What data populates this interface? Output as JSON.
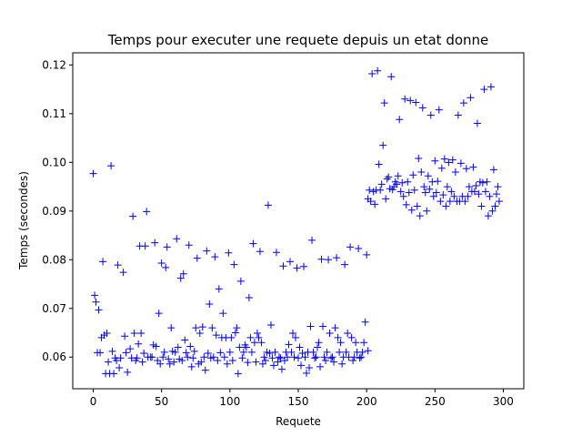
{
  "chart_data": {
    "type": "scatter",
    "title": "Temps pour executer une requete depuis un etat donne",
    "xlabel": "Requete",
    "ylabel": "Temps (secondes)",
    "xlim": [
      -15,
      315
    ],
    "ylim": [
      0.0535,
      0.1225
    ],
    "xticks": [
      0,
      50,
      100,
      150,
      200,
      250,
      300
    ],
    "xtick_labels": [
      "0",
      "50",
      "100",
      "150",
      "200",
      "250",
      "300"
    ],
    "yticks": [
      0.06,
      0.07,
      0.08,
      0.09,
      0.1,
      0.11,
      0.12
    ],
    "ytick_labels": [
      "0.06",
      "0.07",
      "0.08",
      "0.09",
      "0.10",
      "0.11",
      "0.12"
    ],
    "marker": "+",
    "color": "#0000ff",
    "grid": false,
    "series": [
      {
        "points": [
          [
            0,
            0.0977
          ],
          [
            1,
            0.0727
          ],
          [
            2,
            0.0713
          ],
          [
            4,
            0.0697
          ],
          [
            3,
            0.0609
          ],
          [
            6,
            0.064
          ],
          [
            7,
            0.0796
          ],
          [
            8,
            0.0645
          ],
          [
            5,
            0.0609
          ],
          [
            9,
            0.0566
          ],
          [
            10,
            0.0649
          ],
          [
            11,
            0.059
          ],
          [
            12,
            0.0566
          ],
          [
            13,
            0.0993
          ],
          [
            14,
            0.0612
          ],
          [
            15,
            0.0566
          ],
          [
            16,
            0.0598
          ],
          [
            17,
            0.0593
          ],
          [
            18,
            0.0789
          ],
          [
            19,
            0.0578
          ],
          [
            20,
            0.0598
          ],
          [
            22,
            0.0774
          ],
          [
            23,
            0.0643
          ],
          [
            24,
            0.0609
          ],
          [
            25,
            0.0569
          ],
          [
            27,
            0.0617
          ],
          [
            28,
            0.0598
          ],
          [
            29,
            0.0889
          ],
          [
            30,
            0.0649
          ],
          [
            31,
            0.0593
          ],
          [
            32,
            0.0598
          ],
          [
            33,
            0.0627
          ],
          [
            34,
            0.0828
          ],
          [
            35,
            0.0649
          ],
          [
            36,
            0.059
          ],
          [
            37,
            0.0608
          ],
          [
            38,
            0.0828
          ],
          [
            39,
            0.0899
          ],
          [
            40,
            0.06
          ],
          [
            42,
            0.06
          ],
          [
            43,
            0.06
          ],
          [
            44,
            0.0625
          ],
          [
            45,
            0.0835
          ],
          [
            46,
            0.0622
          ],
          [
            47,
            0.0593
          ],
          [
            48,
            0.069
          ],
          [
            49,
            0.0586
          ],
          [
            50,
            0.0793
          ],
          [
            51,
            0.06
          ],
          [
            52,
            0.061
          ],
          [
            53,
            0.0784
          ],
          [
            54,
            0.0826
          ],
          [
            55,
            0.0596
          ],
          [
            56,
            0.0586
          ],
          [
            57,
            0.066
          ],
          [
            58,
            0.0612
          ],
          [
            59,
            0.059
          ],
          [
            60,
            0.061
          ],
          [
            61,
            0.0843
          ],
          [
            62,
            0.062
          ],
          [
            63,
            0.0596
          ],
          [
            64,
            0.0762
          ],
          [
            65,
            0.0593
          ],
          [
            66,
            0.0771
          ],
          [
            67,
            0.0635
          ],
          [
            68,
            0.0609
          ],
          [
            69,
            0.06
          ],
          [
            70,
            0.083
          ],
          [
            71,
            0.0622
          ],
          [
            72,
            0.058
          ],
          [
            73,
            0.0598
          ],
          [
            74,
            0.0612
          ],
          [
            75,
            0.066
          ],
          [
            76,
            0.0803
          ],
          [
            77,
            0.0586
          ],
          [
            78,
            0.0649
          ],
          [
            79,
            0.059
          ],
          [
            80,
            0.0662
          ],
          [
            81,
            0.06
          ],
          [
            82,
            0.0573
          ],
          [
            83,
            0.0818
          ],
          [
            84,
            0.0608
          ],
          [
            85,
            0.0709
          ],
          [
            86,
            0.0598
          ],
          [
            87,
            0.066
          ],
          [
            88,
            0.06
          ],
          [
            89,
            0.0806
          ],
          [
            90,
            0.0645
          ],
          [
            91,
            0.0593
          ],
          [
            92,
            0.074
          ],
          [
            93,
            0.0609
          ],
          [
            94,
            0.064
          ],
          [
            95,
            0.069
          ],
          [
            96,
            0.06
          ],
          [
            97,
            0.064
          ],
          [
            98,
            0.0586
          ],
          [
            99,
            0.0814
          ],
          [
            100,
            0.061
          ],
          [
            101,
            0.064
          ],
          [
            102,
            0.0593
          ],
          [
            103,
            0.079
          ],
          [
            104,
            0.065
          ],
          [
            105,
            0.066
          ],
          [
            106,
            0.0566
          ],
          [
            107,
            0.062
          ],
          [
            108,
            0.0756
          ],
          [
            109,
            0.0598
          ],
          [
            110,
            0.061
          ],
          [
            111,
            0.0625
          ],
          [
            112,
            0.062
          ],
          [
            113,
            0.0589
          ],
          [
            114,
            0.0722
          ],
          [
            115,
            0.064
          ],
          [
            116,
            0.061
          ],
          [
            117,
            0.0833
          ],
          [
            118,
            0.063
          ],
          [
            119,
            0.059
          ],
          [
            120,
            0.0649
          ],
          [
            121,
            0.064
          ],
          [
            122,
            0.0817
          ],
          [
            123,
            0.063
          ],
          [
            124,
            0.0586
          ],
          [
            125,
            0.06
          ],
          [
            126,
            0.0593
          ],
          [
            127,
            0.061
          ],
          [
            128,
            0.0912
          ],
          [
            129,
            0.0608
          ],
          [
            130,
            0.0666
          ],
          [
            131,
            0.0598
          ],
          [
            132,
            0.0583
          ],
          [
            133,
            0.061
          ],
          [
            134,
            0.0815
          ],
          [
            135,
            0.059
          ],
          [
            136,
            0.06
          ],
          [
            137,
            0.0598
          ],
          [
            138,
            0.0575
          ],
          [
            139,
            0.0787
          ],
          [
            140,
            0.0593
          ],
          [
            141,
            0.061
          ],
          [
            142,
            0.06
          ],
          [
            143,
            0.0626
          ],
          [
            144,
            0.0796
          ],
          [
            145,
            0.061
          ],
          [
            146,
            0.0649
          ],
          [
            147,
            0.06
          ],
          [
            148,
            0.064
          ],
          [
            149,
            0.0783
          ],
          [
            150,
            0.0598
          ],
          [
            151,
            0.062
          ],
          [
            152,
            0.0583
          ],
          [
            153,
            0.0608
          ],
          [
            154,
            0.0786
          ],
          [
            155,
            0.06
          ],
          [
            156,
            0.0567
          ],
          [
            157,
            0.061
          ],
          [
            158,
            0.0578
          ],
          [
            159,
            0.0663
          ],
          [
            160,
            0.084
          ],
          [
            161,
            0.061
          ],
          [
            162,
            0.0598
          ],
          [
            163,
            0.06
          ],
          [
            164,
            0.062
          ],
          [
            165,
            0.063
          ],
          [
            166,
            0.058
          ],
          [
            167,
            0.0801
          ],
          [
            168,
            0.0663
          ],
          [
            169,
            0.06
          ],
          [
            170,
            0.0593
          ],
          [
            171,
            0.061
          ],
          [
            172,
            0.08
          ],
          [
            173,
            0.0649
          ],
          [
            174,
            0.0598
          ],
          [
            175,
            0.06
          ],
          [
            176,
            0.059
          ],
          [
            177,
            0.066
          ],
          [
            178,
            0.0804
          ],
          [
            179,
            0.064
          ],
          [
            180,
            0.061
          ],
          [
            181,
            0.063
          ],
          [
            182,
            0.0586
          ],
          [
            183,
            0.06
          ],
          [
            184,
            0.079
          ],
          [
            185,
            0.061
          ],
          [
            186,
            0.0649
          ],
          [
            187,
            0.06
          ],
          [
            188,
            0.0826
          ],
          [
            189,
            0.064
          ],
          [
            190,
            0.0593
          ],
          [
            191,
            0.06
          ],
          [
            192,
            0.063
          ],
          [
            193,
            0.061
          ],
          [
            194,
            0.0823
          ],
          [
            195,
            0.0598
          ],
          [
            196,
            0.06
          ],
          [
            197,
            0.061
          ],
          [
            198,
            0.063
          ],
          [
            199,
            0.0672
          ],
          [
            200,
            0.081
          ],
          [
            201,
            0.0613
          ],
          [
            201,
            0.0925
          ],
          [
            202,
            0.0943
          ],
          [
            203,
            0.092
          ],
          [
            204,
            0.1182
          ],
          [
            205,
            0.094
          ],
          [
            206,
            0.0914
          ],
          [
            207,
            0.0943
          ],
          [
            208,
            0.1188
          ],
          [
            209,
            0.0996
          ],
          [
            210,
            0.0943
          ],
          [
            211,
            0.0955
          ],
          [
            212,
            0.1035
          ],
          [
            213,
            0.1122
          ],
          [
            214,
            0.0925
          ],
          [
            215,
            0.0966
          ],
          [
            216,
            0.097
          ],
          [
            217,
            0.0946
          ],
          [
            218,
            0.1176
          ],
          [
            219,
            0.0944
          ],
          [
            220,
            0.095
          ],
          [
            221,
            0.096
          ],
          [
            222,
            0.0955
          ],
          [
            223,
            0.0972
          ],
          [
            224,
            0.1088
          ],
          [
            225,
            0.094
          ],
          [
            226,
            0.0958
          ],
          [
            227,
            0.093
          ],
          [
            228,
            0.113
          ],
          [
            229,
            0.0913
          ],
          [
            230,
            0.096
          ],
          [
            231,
            0.0938
          ],
          [
            232,
            0.1127
          ],
          [
            233,
            0.0902
          ],
          [
            234,
            0.0974
          ],
          [
            235,
            0.0943
          ],
          [
            236,
            0.1123
          ],
          [
            237,
            0.091
          ],
          [
            238,
            0.1008
          ],
          [
            239,
            0.089
          ],
          [
            240,
            0.098
          ],
          [
            241,
            0.1112
          ],
          [
            242,
            0.095
          ],
          [
            243,
            0.0938
          ],
          [
            244,
            0.09
          ],
          [
            245,
            0.0972
          ],
          [
            246,
            0.0945
          ],
          [
            247,
            0.1097
          ],
          [
            248,
            0.096
          ],
          [
            249,
            0.093
          ],
          [
            250,
            0.1003
          ],
          [
            251,
            0.0938
          ],
          [
            252,
            0.0961
          ],
          [
            253,
            0.1108
          ],
          [
            254,
            0.092
          ],
          [
            255,
            0.0988
          ],
          [
            256,
            0.0933
          ],
          [
            257,
            0.1007
          ],
          [
            258,
            0.091
          ],
          [
            259,
            0.095
          ],
          [
            260,
            0.1
          ],
          [
            261,
            0.092
          ],
          [
            262,
            0.094
          ],
          [
            263,
            0.1005
          ],
          [
            264,
            0.093
          ],
          [
            265,
            0.098
          ],
          [
            266,
            0.092
          ],
          [
            267,
            0.1097
          ],
          [
            268,
            0.092
          ],
          [
            269,
            0.0998
          ],
          [
            270,
            0.093
          ],
          [
            271,
            0.1122
          ],
          [
            272,
            0.092
          ],
          [
            273,
            0.0987
          ],
          [
            274,
            0.093
          ],
          [
            275,
            0.095
          ],
          [
            276,
            0.1133
          ],
          [
            277,
            0.094
          ],
          [
            278,
            0.099
          ],
          [
            279,
            0.094
          ],
          [
            280,
            0.0952
          ],
          [
            281,
            0.108
          ],
          [
            282,
            0.0935
          ],
          [
            283,
            0.096
          ],
          [
            284,
            0.091
          ],
          [
            285,
            0.0958
          ],
          [
            286,
            0.115
          ],
          [
            287,
            0.094
          ],
          [
            288,
            0.096
          ],
          [
            289,
            0.089
          ],
          [
            290,
            0.093
          ],
          [
            291,
            0.1155
          ],
          [
            292,
            0.09
          ],
          [
            293,
            0.0985
          ],
          [
            294,
            0.091
          ],
          [
            295,
            0.0935
          ],
          [
            296,
            0.095
          ],
          [
            297,
            0.092
          ]
        ]
      }
    ]
  }
}
